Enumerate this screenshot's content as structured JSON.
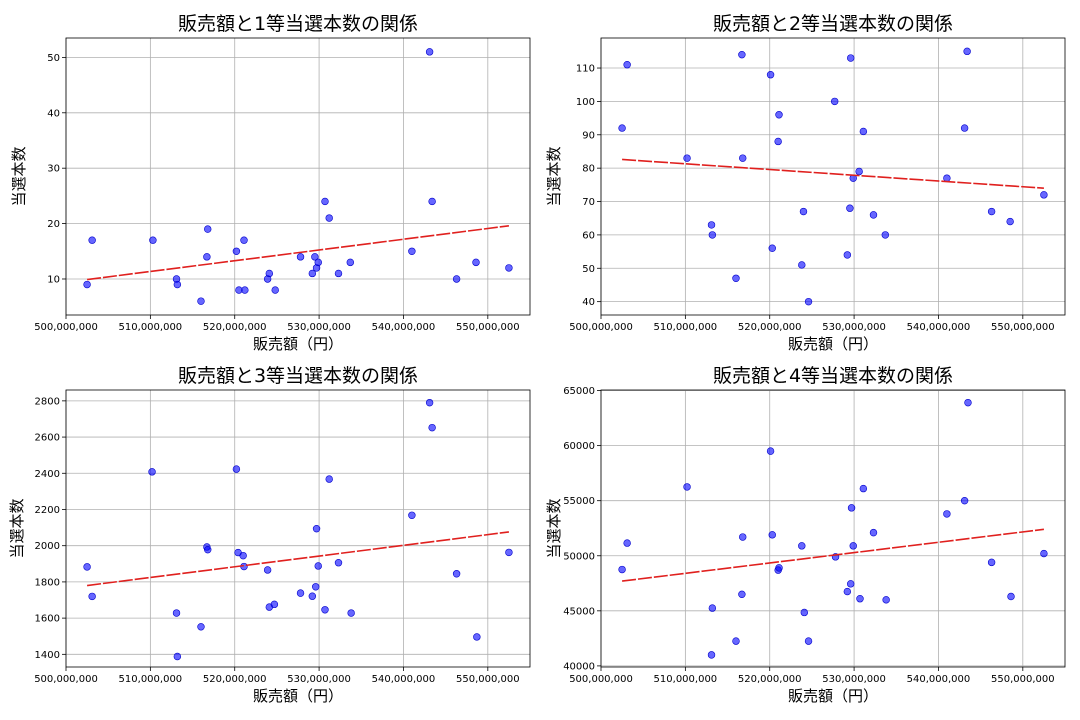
{
  "chart_data": [
    {
      "type": "scatter",
      "title": "販売額と1等当選本数の関係",
      "xlabel": "販売額（円）",
      "ylabel": "当選本数",
      "xlim": [
        500000000,
        555000000
      ],
      "ylim": [
        3.5,
        53.5
      ],
      "xticks": [
        500000000,
        510000000,
        520000000,
        530000000,
        540000000,
        550000000
      ],
      "xtick_labels": [
        "500,000,000",
        "510,000,000",
        "520,000,000",
        "530,000,000",
        "540,000,000",
        "550,000,000"
      ],
      "yticks": [
        10,
        20,
        30,
        40,
        50
      ],
      "ytick_labels": [
        "10",
        "20",
        "30",
        "40",
        "50"
      ],
      "grid": true,
      "trendline": {
        "x": [
          502500000,
          552500000
        ],
        "y": [
          9.9,
          19.6
        ]
      },
      "points": [
        {
          "x": 502500000,
          "y": 9
        },
        {
          "x": 503100000,
          "y": 17
        },
        {
          "x": 510300000,
          "y": 17
        },
        {
          "x": 513100000,
          "y": 10
        },
        {
          "x": 513200000,
          "y": 9
        },
        {
          "x": 516000000,
          "y": 6
        },
        {
          "x": 516700000,
          "y": 14
        },
        {
          "x": 516800000,
          "y": 19
        },
        {
          "x": 520200000,
          "y": 15
        },
        {
          "x": 520500000,
          "y": 8
        },
        {
          "x": 521100000,
          "y": 17
        },
        {
          "x": 521200000,
          "y": 8
        },
        {
          "x": 523900000,
          "y": 10
        },
        {
          "x": 524100000,
          "y": 11
        },
        {
          "x": 524800000,
          "y": 8
        },
        {
          "x": 527800000,
          "y": 14
        },
        {
          "x": 529200000,
          "y": 11
        },
        {
          "x": 529500000,
          "y": 14
        },
        {
          "x": 529700000,
          "y": 12
        },
        {
          "x": 529900000,
          "y": 13
        },
        {
          "x": 530700000,
          "y": 24
        },
        {
          "x": 531200000,
          "y": 21
        },
        {
          "x": 532300000,
          "y": 11
        },
        {
          "x": 533700000,
          "y": 13
        },
        {
          "x": 541000000,
          "y": 15
        },
        {
          "x": 543100000,
          "y": 51
        },
        {
          "x": 543400000,
          "y": 24
        },
        {
          "x": 546300000,
          "y": 10
        },
        {
          "x": 548600000,
          "y": 13
        },
        {
          "x": 552500000,
          "y": 12
        }
      ]
    },
    {
      "type": "scatter",
      "title": "販売額と2等当選本数の関係",
      "xlabel": "販売額（円）",
      "ylabel": "当選本数",
      "xlim": [
        500000000,
        555000000
      ],
      "ylim": [
        36,
        119
      ],
      "xticks": [
        500000000,
        510000000,
        520000000,
        530000000,
        540000000,
        550000000
      ],
      "xtick_labels": [
        "500,000,000",
        "510,000,000",
        "520,000,000",
        "530,000,000",
        "540,000,000",
        "550,000,000"
      ],
      "yticks": [
        40,
        50,
        60,
        70,
        80,
        90,
        100,
        110
      ],
      "ytick_labels": [
        "40",
        "50",
        "60",
        "70",
        "80",
        "90",
        "100",
        "110"
      ],
      "grid": true,
      "trendline": {
        "x": [
          502500000,
          552500000
        ],
        "y": [
          82.6,
          74.0
        ]
      },
      "points": [
        {
          "x": 502500000,
          "y": 92
        },
        {
          "x": 503100000,
          "y": 111
        },
        {
          "x": 510200000,
          "y": 83
        },
        {
          "x": 513100000,
          "y": 63
        },
        {
          "x": 513200000,
          "y": 60
        },
        {
          "x": 516000000,
          "y": 47
        },
        {
          "x": 516700000,
          "y": 114
        },
        {
          "x": 516800000,
          "y": 83
        },
        {
          "x": 520100000,
          "y": 108
        },
        {
          "x": 520300000,
          "y": 56
        },
        {
          "x": 521000000,
          "y": 88
        },
        {
          "x": 521100000,
          "y": 96
        },
        {
          "x": 523800000,
          "y": 51
        },
        {
          "x": 524000000,
          "y": 67
        },
        {
          "x": 524600000,
          "y": 40
        },
        {
          "x": 527700000,
          "y": 100
        },
        {
          "x": 529200000,
          "y": 54
        },
        {
          "x": 529500000,
          "y": 68
        },
        {
          "x": 529600000,
          "y": 113
        },
        {
          "x": 529900000,
          "y": 77
        },
        {
          "x": 530600000,
          "y": 79
        },
        {
          "x": 531100000,
          "y": 91
        },
        {
          "x": 532300000,
          "y": 66
        },
        {
          "x": 533700000,
          "y": 60
        },
        {
          "x": 541000000,
          "y": 77
        },
        {
          "x": 543100000,
          "y": 92
        },
        {
          "x": 543400000,
          "y": 115
        },
        {
          "x": 546300000,
          "y": 67
        },
        {
          "x": 548500000,
          "y": 64
        },
        {
          "x": 552500000,
          "y": 72
        }
      ]
    },
    {
      "type": "scatter",
      "title": "販売額と3等当選本数の関係",
      "xlabel": "販売額（円）",
      "ylabel": "当選本数",
      "xlim": [
        500000000,
        555000000
      ],
      "ylim": [
        1330,
        2860
      ],
      "xticks": [
        500000000,
        510000000,
        520000000,
        530000000,
        540000000,
        550000000
      ],
      "xtick_labels": [
        "500,000,000",
        "510,000,000",
        "520,000,000",
        "530,000,000",
        "540,000,000",
        "550,000,000"
      ],
      "yticks": [
        1400,
        1600,
        1800,
        2000,
        2200,
        2400,
        2600,
        2800
      ],
      "ytick_labels": [
        "1400",
        "1600",
        "1800",
        "2000",
        "2200",
        "2400",
        "2600",
        "2800"
      ],
      "grid": true,
      "trendline": {
        "x": [
          502500000,
          552500000
        ],
        "y": [
          1780,
          2076
        ]
      },
      "points": [
        {
          "x": 502500000,
          "y": 1883
        },
        {
          "x": 503100000,
          "y": 1720
        },
        {
          "x": 510200000,
          "y": 2408
        },
        {
          "x": 513100000,
          "y": 1628
        },
        {
          "x": 513200000,
          "y": 1388
        },
        {
          "x": 516000000,
          "y": 1552
        },
        {
          "x": 516700000,
          "y": 1993
        },
        {
          "x": 516800000,
          "y": 1978
        },
        {
          "x": 520200000,
          "y": 2423
        },
        {
          "x": 520400000,
          "y": 1962
        },
        {
          "x": 521000000,
          "y": 1945
        },
        {
          "x": 521100000,
          "y": 1885
        },
        {
          "x": 523900000,
          "y": 1866
        },
        {
          "x": 524100000,
          "y": 1661
        },
        {
          "x": 524700000,
          "y": 1676
        },
        {
          "x": 527800000,
          "y": 1738
        },
        {
          "x": 529200000,
          "y": 1721
        },
        {
          "x": 529600000,
          "y": 1773
        },
        {
          "x": 529700000,
          "y": 2094
        },
        {
          "x": 529900000,
          "y": 1888
        },
        {
          "x": 530700000,
          "y": 1646
        },
        {
          "x": 531200000,
          "y": 2368
        },
        {
          "x": 532300000,
          "y": 1906
        },
        {
          "x": 533800000,
          "y": 1628
        },
        {
          "x": 541000000,
          "y": 2168
        },
        {
          "x": 543100000,
          "y": 2790
        },
        {
          "x": 543400000,
          "y": 2652
        },
        {
          "x": 546300000,
          "y": 1845
        },
        {
          "x": 548700000,
          "y": 1496
        },
        {
          "x": 552500000,
          "y": 1963
        }
      ]
    },
    {
      "type": "scatter",
      "title": "販売額と4等当選本数の関係",
      "xlabel": "販売額（円）",
      "ylabel": "当選本数",
      "xlim": [
        500000000,
        555000000
      ],
      "ylim": [
        39900,
        65050
      ],
      "xticks": [
        500000000,
        510000000,
        520000000,
        530000000,
        540000000,
        550000000
      ],
      "xtick_labels": [
        "500,000,000",
        "510,000,000",
        "520,000,000",
        "530,000,000",
        "540,000,000",
        "550,000,000"
      ],
      "yticks": [
        40000,
        45000,
        50000,
        55000,
        60000,
        65000
      ],
      "ytick_labels": [
        "40000",
        "45000",
        "50000",
        "55000",
        "60000",
        "65000"
      ],
      "grid": true,
      "trendline": {
        "x": [
          502500000,
          552500000
        ],
        "y": [
          47700,
          52400
        ]
      },
      "points": [
        {
          "x": 502500000,
          "y": 48750
        },
        {
          "x": 503100000,
          "y": 51150
        },
        {
          "x": 510200000,
          "y": 56250
        },
        {
          "x": 513100000,
          "y": 41000
        },
        {
          "x": 513200000,
          "y": 45250
        },
        {
          "x": 516000000,
          "y": 42250
        },
        {
          "x": 516700000,
          "y": 46500
        },
        {
          "x": 516800000,
          "y": 51700
        },
        {
          "x": 520100000,
          "y": 59500
        },
        {
          "x": 520300000,
          "y": 51900
        },
        {
          "x": 521000000,
          "y": 48700
        },
        {
          "x": 521100000,
          "y": 48900
        },
        {
          "x": 523800000,
          "y": 50900
        },
        {
          "x": 524100000,
          "y": 44850
        },
        {
          "x": 524600000,
          "y": 42250
        },
        {
          "x": 527800000,
          "y": 49900
        },
        {
          "x": 529200000,
          "y": 46750
        },
        {
          "x": 529600000,
          "y": 47450
        },
        {
          "x": 529700000,
          "y": 54350
        },
        {
          "x": 529900000,
          "y": 50900
        },
        {
          "x": 530700000,
          "y": 46100
        },
        {
          "x": 531100000,
          "y": 56100
        },
        {
          "x": 532300000,
          "y": 52100
        },
        {
          "x": 533800000,
          "y": 46000
        },
        {
          "x": 541000000,
          "y": 53800
        },
        {
          "x": 543100000,
          "y": 55000
        },
        {
          "x": 543500000,
          "y": 63900
        },
        {
          "x": 546300000,
          "y": 49400
        },
        {
          "x": 548600000,
          "y": 46300
        },
        {
          "x": 552500000,
          "y": 50200
        }
      ]
    }
  ]
}
